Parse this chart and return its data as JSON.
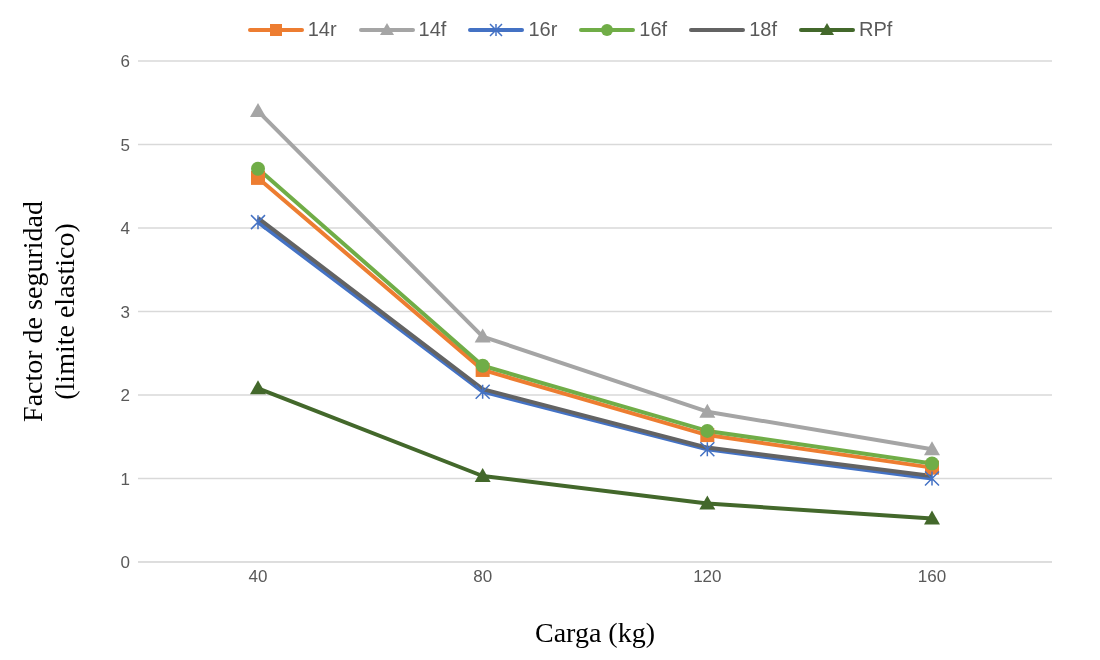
{
  "chart_data": {
    "type": "line",
    "xlabel": "Carga (kg)",
    "ylabel": "Factor de seguridad\n(limite elastico)",
    "categories": [
      "40",
      "80",
      "120",
      "160"
    ],
    "ylim": [
      0,
      6
    ],
    "yticks": [
      0,
      1,
      2,
      3,
      4,
      5,
      6
    ],
    "grid": "y",
    "legend": "top",
    "line_style": "solid",
    "series": [
      {
        "name": "14r",
        "color": "#ed7d31",
        "marker": "square",
        "values": [
          4.6,
          2.3,
          1.52,
          1.13
        ]
      },
      {
        "name": "14f",
        "color": "#a5a5a5",
        "marker": "triangle",
        "values": [
          5.4,
          2.7,
          1.8,
          1.35
        ]
      },
      {
        "name": "16r",
        "color": "#4472c4",
        "marker": "cross",
        "values": [
          4.07,
          2.04,
          1.35,
          1.0
        ]
      },
      {
        "name": "16f",
        "color": "#70ad47",
        "marker": "circle",
        "values": [
          4.71,
          2.35,
          1.57,
          1.18
        ]
      },
      {
        "name": "18f",
        "color": "#636363",
        "marker": "none",
        "values": [
          4.12,
          2.07,
          1.37,
          1.03
        ]
      },
      {
        "name": "RPf",
        "color": "#43682b",
        "marker": "triangle",
        "values": [
          2.08,
          1.03,
          0.7,
          0.52
        ]
      }
    ]
  }
}
